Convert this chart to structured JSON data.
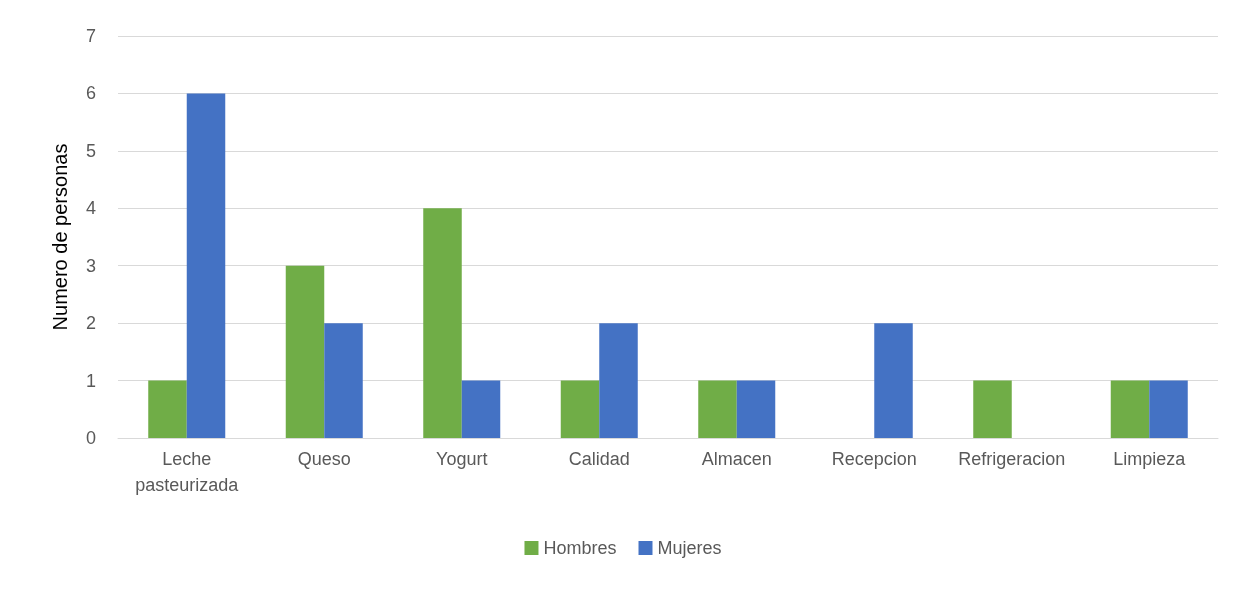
{
  "chart_data": {
    "type": "bar",
    "ylabel": "Numero de personas",
    "categories": [
      "Leche pasteurizada",
      "Queso",
      "Yogurt",
      "Calidad",
      "Almacen",
      "Recepcion",
      "Refrigeracion",
      "Limpieza"
    ],
    "series": [
      {
        "name": "Hombres",
        "color": "#70ad47",
        "values": [
          1,
          3,
          4,
          1,
          1,
          0,
          1,
          1
        ]
      },
      {
        "name": "Mujeres",
        "color": "#4472c4",
        "values": [
          6,
          2,
          1,
          2,
          1,
          2,
          0,
          1
        ]
      }
    ],
    "ylim": [
      0,
      7
    ],
    "yticks": [
      0,
      1,
      2,
      3,
      4,
      5,
      6,
      7
    ],
    "grid": "y",
    "legend": "bottom"
  }
}
